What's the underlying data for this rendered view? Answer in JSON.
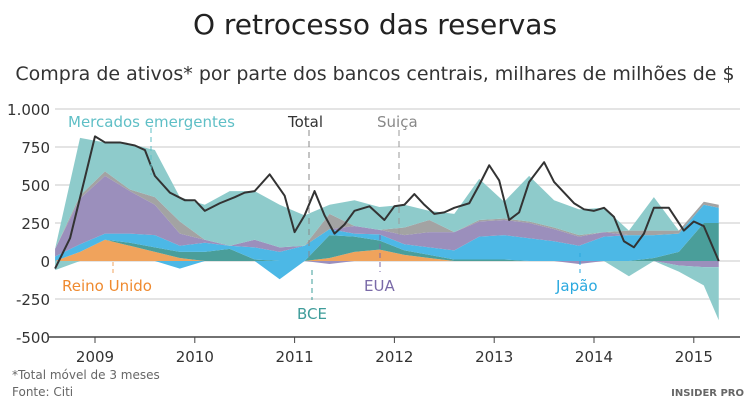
{
  "chart_data": {
    "type": "area",
    "stacked": true,
    "title": "O retrocesso das reservas",
    "subtitle": "Compra de ativos* por parte dos bancos centrais, milhares de milhões de $",
    "xlabel": "",
    "ylabel": "",
    "ylim": [
      -500,
      1000
    ],
    "yticks": [
      1000,
      750,
      500,
      250,
      0,
      -250,
      -500
    ],
    "ytick_labels": [
      "1.000",
      "750",
      "500",
      "250",
      "0",
      "-250",
      "-500"
    ],
    "xticks": [
      2009,
      2010,
      2011,
      2012,
      2013,
      2014,
      2015
    ],
    "xtick_labels": [
      "2009",
      "2010",
      "2011",
      "2012",
      "2013",
      "2014",
      "2015"
    ],
    "grid": "horizontal",
    "x": [
      2008.6,
      2008.85,
      2009.1,
      2009.35,
      2009.6,
      2009.85,
      2010.1,
      2010.35,
      2010.6,
      2010.85,
      2011.1,
      2011.35,
      2011.6,
      2011.85,
      2012.1,
      2012.35,
      2012.6,
      2012.85,
      2013.1,
      2013.35,
      2013.6,
      2013.85,
      2014.1,
      2014.35,
      2014.6,
      2014.85,
      2015.1,
      2015.25
    ],
    "series": [
      {
        "name": "Reino Unido",
        "color": "#f0a35c",
        "values": [
          0,
          60,
          140,
          100,
          60,
          20,
          0,
          0,
          0,
          0,
          0,
          20,
          60,
          75,
          40,
          20,
          0,
          0,
          0,
          0,
          0,
          0,
          0,
          0,
          0,
          0,
          0,
          0
        ]
      },
      {
        "name": "BCE",
        "color": "#4a9e9a",
        "values": [
          0,
          0,
          0,
          20,
          30,
          40,
          60,
          80,
          10,
          0,
          0,
          150,
          100,
          60,
          30,
          20,
          10,
          10,
          10,
          0,
          0,
          0,
          0,
          0,
          20,
          60,
          250,
          250
        ]
      },
      {
        "name": "Japão",
        "color": "#4cb8e6",
        "values": [
          30,
          50,
          40,
          60,
          80,
          40,
          60,
          20,
          80,
          60,
          100,
          40,
          20,
          40,
          40,
          50,
          60,
          150,
          160,
          150,
          130,
          100,
          160,
          170,
          150,
          120,
          120,
          100
        ]
      },
      {
        "name": "EUA",
        "color": "#9b8fbc",
        "values": [
          50,
          300,
          380,
          280,
          200,
          80,
          20,
          0,
          50,
          30,
          0,
          0,
          50,
          30,
          60,
          100,
          120,
          100,
          100,
          100,
          80,
          60,
          30,
          0,
          0,
          0,
          0,
          0
        ]
      },
      {
        "name": "Suiça",
        "color": "#a3a3a3",
        "values": [
          0,
          20,
          30,
          10,
          50,
          80,
          0,
          0,
          0,
          0,
          0,
          100,
          0,
          0,
          50,
          80,
          0,
          10,
          10,
          10,
          10,
          10,
          0,
          30,
          30,
          20,
          20,
          20
        ]
      },
      {
        "name": "Mercados emergentes",
        "color": "#8ecbcb",
        "values": [
          -60,
          380,
          190,
          300,
          310,
          160,
          230,
          360,
          320,
          280,
          200,
          60,
          170,
          150,
          150,
          60,
          120,
          270,
          110,
          300,
          180,
          170,
          160,
          -100,
          220,
          -40,
          -120,
          -350
        ]
      }
    ],
    "negative_values": {
      "Japão": [
        0,
        0,
        0,
        0,
        0,
        -50,
        0,
        0,
        0,
        -120,
        0,
        0,
        0,
        0,
        0,
        0,
        0,
        0,
        0,
        0,
        0,
        0,
        0,
        0,
        0,
        0,
        0,
        0
      ],
      "EUA": [
        0,
        0,
        0,
        0,
        0,
        0,
        0,
        0,
        0,
        0,
        0,
        -20,
        0,
        0,
        0,
        0,
        0,
        0,
        0,
        0,
        0,
        -20,
        0,
        0,
        0,
        -30,
        -40,
        -40
      ]
    },
    "total": {
      "name": "Total",
      "color": "#333333",
      "x": [
        2008.6,
        2008.75,
        2008.9,
        2009.0,
        2009.1,
        2009.25,
        2009.4,
        2009.5,
        2009.6,
        2009.75,
        2009.9,
        2010.0,
        2010.1,
        2010.25,
        2010.4,
        2010.5,
        2010.6,
        2010.75,
        2010.9,
        2011.0,
        2011.1,
        2011.2,
        2011.3,
        2011.4,
        2011.5,
        2011.6,
        2011.75,
        2011.9,
        2012.0,
        2012.1,
        2012.2,
        2012.3,
        2012.4,
        2012.5,
        2012.6,
        2012.75,
        2012.85,
        2012.95,
        2013.05,
        2013.15,
        2013.25,
        2013.35,
        2013.5,
        2013.6,
        2013.7,
        2013.8,
        2013.9,
        2014.0,
        2014.1,
        2014.2,
        2014.3,
        2014.4,
        2014.5,
        2014.6,
        2014.75,
        2014.9,
        2015.0,
        2015.1,
        2015.25
      ],
      "values": [
        -50,
        150,
        550,
        820,
        780,
        780,
        760,
        730,
        560,
        450,
        400,
        400,
        330,
        380,
        420,
        450,
        460,
        570,
        430,
        190,
        300,
        460,
        300,
        180,
        240,
        330,
        360,
        270,
        360,
        370,
        440,
        370,
        310,
        320,
        350,
        380,
        500,
        630,
        530,
        270,
        320,
        520,
        650,
        520,
        450,
        380,
        340,
        330,
        350,
        290,
        130,
        90,
        180,
        350,
        350,
        200,
        260,
        230,
        0
      ]
    },
    "annotations": {
      "em": "Mercados emergentes",
      "total": "Total",
      "suica": "Suiça",
      "uk": "Reino Unido",
      "bce": "BCE",
      "eua": "EUA",
      "japao": "Japão"
    }
  },
  "footer": {
    "note": "*Total móvel de 3 meses",
    "source": "Fonte: Citi",
    "logo": "INSIDER PRO"
  }
}
